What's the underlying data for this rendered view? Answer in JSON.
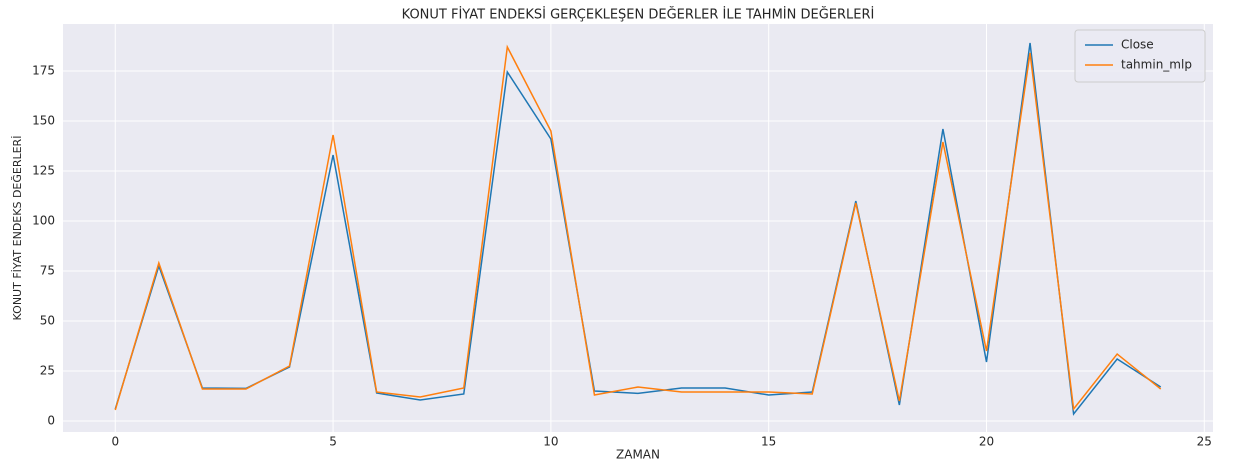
{
  "chart_data": {
    "type": "line",
    "title": "KONUT FİYAT ENDEKSİ GERÇEKLEŞEN DEĞERLER İLE TAHMİN DEĞERLERİ",
    "x_label": "ZAMAN",
    "y_label": "KONUT FİYAT ENDEKS DEĞERLERİ",
    "x": [
      0,
      1,
      2,
      3,
      4,
      5,
      6,
      7,
      8,
      9,
      10,
      11,
      12,
      13,
      14,
      15,
      16,
      17,
      18,
      19,
      20,
      21,
      22,
      23,
      24
    ],
    "series": [
      {
        "name": "Close",
        "color": "#1f77b4",
        "values": [
          6,
          77.5,
          16.5,
          16.3,
          27,
          133,
          14,
          10.5,
          13.5,
          174.5,
          141,
          15,
          13.8,
          16.5,
          16.5,
          13,
          14.5,
          110,
          8,
          146,
          29.5,
          189,
          3.5,
          31,
          17
        ]
      },
      {
        "name": "tahmin_mlp",
        "color": "#ff7f0e",
        "values": [
          5.5,
          79,
          16,
          16,
          27.5,
          143,
          14.5,
          12,
          16.5,
          187,
          145,
          13,
          17,
          14.5,
          14.5,
          14.5,
          13.5,
          109,
          10,
          139.5,
          35,
          184,
          6,
          33.5,
          16
        ]
      }
    ],
    "xlim": [
      -1.2,
      25.2
    ],
    "xticks": [
      0,
      5,
      10,
      15,
      20,
      25
    ],
    "ylim": [
      -5.5,
      198.5
    ],
    "yticks": [
      0,
      25,
      50,
      75,
      100,
      125,
      150,
      175
    ],
    "grid": true,
    "legend": "upper right"
  }
}
